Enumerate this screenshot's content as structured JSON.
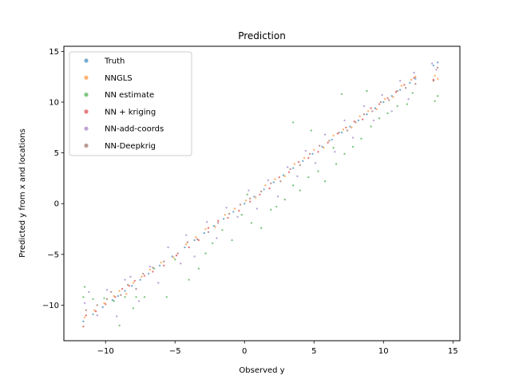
{
  "chart_data": {
    "type": "scatter",
    "title": "Prediction",
    "xlabel": "Observed y",
    "ylabel": "Predicted y from x and locations",
    "xlim": [
      -13,
      15.5
    ],
    "ylim": [
      -13.5,
      15.5
    ],
    "xticks": [
      -10,
      -5,
      0,
      5,
      10,
      15
    ],
    "yticks": [
      -10,
      -5,
      0,
      5,
      10,
      15
    ],
    "xtick_labels": [
      "−10",
      "−5",
      "0",
      "5",
      "10",
      "15"
    ],
    "ytick_labels": [
      "−10",
      "−5",
      "0",
      "5",
      "10",
      "15"
    ],
    "grid": false,
    "legend_position": "top-left",
    "series": [
      {
        "name": "Truth",
        "color": "#1f77b4",
        "points": [
          [
            -11.6,
            -11.6
          ],
          [
            -10.9,
            -10.9
          ],
          [
            -10.2,
            -10.2
          ],
          [
            -9.5,
            -9.5
          ],
          [
            -9.1,
            -9.1
          ],
          [
            -8.6,
            -8.6
          ],
          [
            -8.1,
            -8.1
          ],
          [
            -7.5,
            -7.5
          ],
          [
            -6.9,
            -6.9
          ],
          [
            -6.1,
            -6.1
          ],
          [
            -5.2,
            -5.2
          ],
          [
            -4.3,
            -4.3
          ],
          [
            -3.6,
            -3.6
          ],
          [
            -2.9,
            -2.9
          ],
          [
            -2.2,
            -2.2
          ],
          [
            -1.5,
            -1.5
          ],
          [
            -0.8,
            -0.8
          ],
          [
            0,
            0
          ],
          [
            0.7,
            0.7
          ],
          [
            1.4,
            1.4
          ],
          [
            2.1,
            2.1
          ],
          [
            2.8,
            2.8
          ],
          [
            3.5,
            3.5
          ],
          [
            4.2,
            4.2
          ],
          [
            4.9,
            4.9
          ],
          [
            5.6,
            5.6
          ],
          [
            6.3,
            6.3
          ],
          [
            7,
            7
          ],
          [
            7.6,
            7.6
          ],
          [
            8.2,
            8.2
          ],
          [
            8.8,
            8.8
          ],
          [
            9.4,
            9.4
          ],
          [
            10,
            10
          ],
          [
            10.6,
            10.6
          ],
          [
            11.2,
            11.2
          ],
          [
            11.9,
            11.9
          ],
          [
            12.3,
            12.3
          ],
          [
            13.6,
            13.6
          ],
          [
            13.9,
            13.9
          ]
        ]
      },
      {
        "name": "NNGLS",
        "color": "#ff7f0e",
        "points": [
          [
            -11.5,
            -11.2
          ],
          [
            -10.8,
            -10.5
          ],
          [
            -10.1,
            -9.8
          ],
          [
            -9.4,
            -9.1
          ],
          [
            -9,
            -8.6
          ],
          [
            -8.5,
            -8.9
          ],
          [
            -8,
            -7.8
          ],
          [
            -7.4,
            -7.2
          ],
          [
            -6.8,
            -6.5
          ],
          [
            -6,
            -5.8
          ],
          [
            -5.1,
            -5.3
          ],
          [
            -4.2,
            -4
          ],
          [
            -3.5,
            -3.3
          ],
          [
            -2.8,
            -2.5
          ],
          [
            -2.1,
            -2.3
          ],
          [
            -1.4,
            -1.1
          ],
          [
            -0.7,
            -0.5
          ],
          [
            0.1,
            0.3
          ],
          [
            0.8,
            0.6
          ],
          [
            1.5,
            1.8
          ],
          [
            2.2,
            2.4
          ],
          [
            2.9,
            2.7
          ],
          [
            3.6,
            3.9
          ],
          [
            4.3,
            4.5
          ],
          [
            5,
            5.3
          ],
          [
            5.7,
            5.5
          ],
          [
            6.4,
            6.7
          ],
          [
            7.1,
            7.3
          ],
          [
            7.7,
            7.5
          ],
          [
            8.3,
            8.6
          ],
          [
            8.9,
            9.1
          ],
          [
            9.5,
            9.3
          ],
          [
            10.1,
            10.3
          ],
          [
            10.7,
            10.5
          ],
          [
            11.3,
            11.6
          ],
          [
            12,
            12.2
          ],
          [
            12.3,
            12.5
          ],
          [
            13.7,
            12.6
          ],
          [
            13.9,
            12.3
          ]
        ]
      },
      {
        "name": "NN estimate",
        "color": "#2ca02c",
        "points": [
          [
            -11.6,
            -9.2
          ],
          [
            -11.5,
            -8.2
          ],
          [
            -10.9,
            -9.4
          ],
          [
            -10.1,
            -9.3
          ],
          [
            -9.4,
            -9.6
          ],
          [
            -8.6,
            -9.2
          ],
          [
            -8,
            -10.3
          ],
          [
            -7.8,
            -9.2
          ],
          [
            -7.2,
            -9.2
          ],
          [
            -6.5,
            -6.4
          ],
          [
            -5.6,
            -9.2
          ],
          [
            -5,
            -5.5
          ],
          [
            -4,
            -7.5
          ],
          [
            -3.3,
            -6.4
          ],
          [
            -2.8,
            -4.9
          ],
          [
            -2.3,
            -3.9
          ],
          [
            -1.6,
            -2.6
          ],
          [
            -0.9,
            -3.6
          ],
          [
            -0.2,
            -1.1
          ],
          [
            0.5,
            -1.9
          ],
          [
            1.2,
            -2.4
          ],
          [
            1.9,
            -0.6
          ],
          [
            2.3,
            -0.3
          ],
          [
            2.9,
            0.4
          ],
          [
            3.5,
            1.8
          ],
          [
            4,
            1.3
          ],
          [
            4.6,
            2.6
          ],
          [
            5.3,
            3.2
          ],
          [
            5.8,
            2.2
          ],
          [
            6.6,
            3.9
          ],
          [
            7.2,
            4.9
          ],
          [
            7.8,
            5.6
          ],
          [
            8.4,
            6.4
          ],
          [
            9.1,
            7.6
          ],
          [
            9.7,
            8.4
          ],
          [
            10.3,
            8.9
          ],
          [
            11,
            9.6
          ],
          [
            11.7,
            9.8
          ],
          [
            12.1,
            10.9
          ],
          [
            13.7,
            10.1
          ],
          [
            13.9,
            10.6
          ],
          [
            3.5,
            8
          ],
          [
            4.8,
            7.2
          ],
          [
            6.4,
            5.5
          ],
          [
            7,
            10.8
          ],
          [
            8.8,
            11.1
          ],
          [
            -9,
            -12
          ],
          [
            0.2,
            0.9
          ]
        ]
      },
      {
        "name": "NN + kriging",
        "color": "#d62728",
        "points": [
          [
            -11.6,
            -12.1
          ],
          [
            -11.4,
            -11
          ],
          [
            -10.7,
            -10.6
          ],
          [
            -10,
            -9.9
          ],
          [
            -9.3,
            -9.2
          ],
          [
            -8.8,
            -8.4
          ],
          [
            -8.3,
            -8.1
          ],
          [
            -7.9,
            -7.6
          ],
          [
            -7.2,
            -7.1
          ],
          [
            -6.6,
            -6.7
          ],
          [
            -5.8,
            -6.1
          ],
          [
            -4.9,
            -5.1
          ],
          [
            -4,
            -4.3
          ],
          [
            -3.3,
            -3.6
          ],
          [
            -2.6,
            -2.4
          ],
          [
            -1.9,
            -1.7
          ],
          [
            -1.2,
            -1.4
          ],
          [
            -0.4,
            -0.7
          ],
          [
            0.4,
            0.2
          ],
          [
            1.1,
            0.9
          ],
          [
            1.8,
            1.5
          ],
          [
            2.5,
            2.6
          ],
          [
            3.2,
            3.1
          ],
          [
            3.9,
            4.1
          ],
          [
            4.6,
            4.5
          ],
          [
            5.3,
            5.1
          ],
          [
            6,
            6
          ],
          [
            6.7,
            6.9
          ],
          [
            7.3,
            7.5
          ],
          [
            7.9,
            8.1
          ],
          [
            8.5,
            8.3
          ],
          [
            9.1,
            9.4
          ],
          [
            9.7,
            9.8
          ],
          [
            10.3,
            10.4
          ],
          [
            10.9,
            11
          ],
          [
            11.5,
            11.7
          ],
          [
            12.2,
            12.4
          ],
          [
            13.6,
            12.2
          ]
        ]
      },
      {
        "name": "NN-add-coords",
        "color": "#9467bd",
        "points": [
          [
            -11.5,
            -9.8
          ],
          [
            -11.2,
            -8.7
          ],
          [
            -10.6,
            -11
          ],
          [
            -9.9,
            -8.5
          ],
          [
            -9.2,
            -11.1
          ],
          [
            -8.6,
            -7.5
          ],
          [
            -8.2,
            -7.2
          ],
          [
            -7.6,
            -9.6
          ],
          [
            -6.8,
            -6.2
          ],
          [
            -6.2,
            -7.8
          ],
          [
            -5.5,
            -4.3
          ],
          [
            -4.6,
            -5.9
          ],
          [
            -4.2,
            -3.1
          ],
          [
            -3.6,
            -5.2
          ],
          [
            -2.7,
            -1.8
          ],
          [
            -2,
            -3.4
          ],
          [
            -1.3,
            -0.4
          ],
          [
            -0.5,
            -1.3
          ],
          [
            0.3,
            1.3
          ],
          [
            0.9,
            -0.5
          ],
          [
            1.7,
            2.3
          ],
          [
            2.4,
            0.7
          ],
          [
            3.1,
            3.6
          ],
          [
            3.8,
            2.7
          ],
          [
            4.4,
            5.2
          ],
          [
            5.1,
            4
          ],
          [
            5.8,
            6.8
          ],
          [
            6.5,
            5.1
          ],
          [
            7.2,
            8.2
          ],
          [
            7.8,
            6.5
          ],
          [
            8.6,
            9.6
          ],
          [
            9.3,
            8.2
          ],
          [
            9.9,
            10.7
          ],
          [
            10.6,
            9.1
          ],
          [
            11.2,
            12.1
          ],
          [
            11.8,
            10.3
          ],
          [
            12.2,
            12.9
          ],
          [
            13.5,
            13.8
          ],
          [
            13.8,
            13.2
          ]
        ]
      },
      {
        "name": "NN-Deepkrig",
        "color": "#8c564b",
        "points": [
          [
            -11.4,
            -10.5
          ],
          [
            -10.6,
            -10
          ],
          [
            -9.9,
            -9.4
          ],
          [
            -9.6,
            -8.7
          ],
          [
            -8.9,
            -9
          ],
          [
            -8.4,
            -8
          ],
          [
            -7.8,
            -8.4
          ],
          [
            -7.3,
            -6.9
          ],
          [
            -6.6,
            -6.3
          ],
          [
            -5.8,
            -5.7
          ],
          [
            -4.8,
            -4.9
          ],
          [
            -4.1,
            -3.8
          ],
          [
            -3.4,
            -3.5
          ],
          [
            -2.6,
            -2.8
          ],
          [
            -1.9,
            -1.9
          ],
          [
            -1.1,
            -1
          ],
          [
            -0.3,
            -0.1
          ],
          [
            0.4,
            0.5
          ],
          [
            1.2,
            1.2
          ],
          [
            1.9,
            2
          ],
          [
            2.6,
            2.2
          ],
          [
            3.3,
            3.4
          ],
          [
            4,
            3.8
          ],
          [
            4.7,
            4.9
          ],
          [
            5.4,
            5.7
          ],
          [
            6.1,
            6.2
          ],
          [
            6.8,
            7
          ],
          [
            7.4,
            7.2
          ],
          [
            8,
            8
          ],
          [
            8.6,
            8.8
          ],
          [
            9.2,
            9.1
          ],
          [
            9.8,
            10
          ],
          [
            10.4,
            10.2
          ],
          [
            11,
            11.1
          ],
          [
            11.6,
            11.4
          ],
          [
            12.3,
            11.8
          ],
          [
            13.6,
            12.1
          ],
          [
            13.9,
            13.4
          ]
        ]
      }
    ]
  }
}
